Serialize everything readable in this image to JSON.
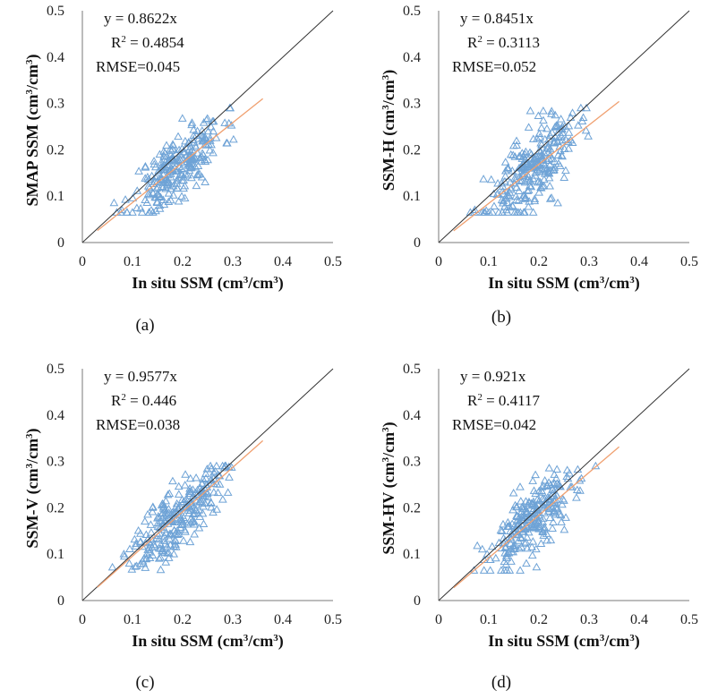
{
  "chart_data": [
    {
      "type": "scatter",
      "panel_label": "(a)",
      "xlabel": [
        "In situ SSM (cm",
        "3",
        "/cm",
        "3",
        ")"
      ],
      "ylabel": [
        "SMAP SSM (cm",
        "3",
        "/cm",
        "3",
        ")"
      ],
      "xlim": [
        0,
        0.5
      ],
      "ylim": [
        0,
        0.5
      ],
      "xticks": [
        "0",
        "0.1",
        "0.2",
        "0.3",
        "0.4",
        "0.5"
      ],
      "yticks": [
        "0",
        "0.1",
        "0.2",
        "0.3",
        "0.4",
        "0.5"
      ],
      "equation": "y = 0.8622x",
      "r2": [
        "R",
        "2",
        " = 0.4854"
      ],
      "rmse": "RMSE=0.045",
      "slope": 0.8622,
      "fit_x_range": [
        0.03,
        0.36
      ],
      "cluster": {
        "x_center": 0.19,
        "x_sd": 0.045,
        "noise_sd": 0.035,
        "n": 260,
        "seed": 11
      },
      "colors": {
        "points": "#6fa3d6",
        "fit": "#f0a070",
        "identity": "#333333"
      }
    },
    {
      "type": "scatter",
      "panel_label": "(b)",
      "xlabel": [
        "In situ SSM (cm",
        "3",
        "/cm",
        "3",
        ")"
      ],
      "ylabel": [
        "SSM-H (cm",
        "3",
        "/cm",
        "3",
        ")"
      ],
      "xlim": [
        0,
        0.5
      ],
      "ylim": [
        0,
        0.5
      ],
      "xticks": [
        "0",
        "0.1",
        "0.2",
        "0.3",
        "0.4",
        "0.5"
      ],
      "yticks": [
        "0",
        "0.1",
        "0.2",
        "0.3",
        "0.4",
        "0.5"
      ],
      "equation": "y = 0.8451x",
      "r2": [
        "R",
        "2",
        " = 0.3113"
      ],
      "rmse": "RMSE=0.052",
      "slope": 0.8451,
      "fit_x_range": [
        0.03,
        0.36
      ],
      "cluster": {
        "x_center": 0.185,
        "x_sd": 0.045,
        "noise_sd": 0.042,
        "n": 260,
        "seed": 23
      },
      "colors": {
        "points": "#6fa3d6",
        "fit": "#f0a070",
        "identity": "#333333"
      }
    },
    {
      "type": "scatter",
      "panel_label": "(c)",
      "xlabel": [
        "In situ SSM (cm",
        "3",
        "/cm",
        "3",
        ")"
      ],
      "ylabel": [
        "SSM-V (cm",
        "3",
        "/cm",
        "3",
        ")"
      ],
      "xlim": [
        0,
        0.5
      ],
      "ylim": [
        0,
        0.5
      ],
      "xticks": [
        "0",
        "0.1",
        "0.2",
        "0.3",
        "0.4",
        "0.5"
      ],
      "yticks": [
        "0",
        "0.1",
        "0.2",
        "0.3",
        "0.4",
        "0.5"
      ],
      "equation": "y = 0.9577x",
      "r2": [
        "R",
        "2",
        " = 0.446"
      ],
      "rmse": "RMSE=0.038",
      "slope": 0.9577,
      "fit_x_range": [
        0.03,
        0.36
      ],
      "cluster": {
        "x_center": 0.19,
        "x_sd": 0.045,
        "noise_sd": 0.035,
        "n": 260,
        "seed": 37
      },
      "colors": {
        "points": "#6fa3d6",
        "fit": "#f0a070",
        "identity": "#333333"
      }
    },
    {
      "type": "scatter",
      "panel_label": "(d)",
      "xlabel": [
        "In situ SSM (cm",
        "3",
        "/cm",
        "3",
        ")"
      ],
      "ylabel": [
        "SSM-HV (cm",
        "3",
        "/cm",
        "3",
        ")"
      ],
      "xlim": [
        0,
        0.5
      ],
      "ylim": [
        0,
        0.5
      ],
      "xticks": [
        "0",
        "0.1",
        "0.2",
        "0.3",
        "0.4",
        "0.5"
      ],
      "yticks": [
        "0",
        "0.1",
        "0.2",
        "0.3",
        "0.4",
        "0.5"
      ],
      "equation": "y = 0.921x",
      "r2": [
        "R",
        "2",
        " = 0.4117"
      ],
      "rmse": "RMSE=0.042",
      "slope": 0.921,
      "fit_x_range": [
        0.03,
        0.36
      ],
      "cluster": {
        "x_center": 0.19,
        "x_sd": 0.045,
        "noise_sd": 0.038,
        "n": 260,
        "seed": 53
      },
      "colors": {
        "points": "#6fa3d6",
        "fit": "#f0a070",
        "identity": "#333333"
      }
    }
  ]
}
